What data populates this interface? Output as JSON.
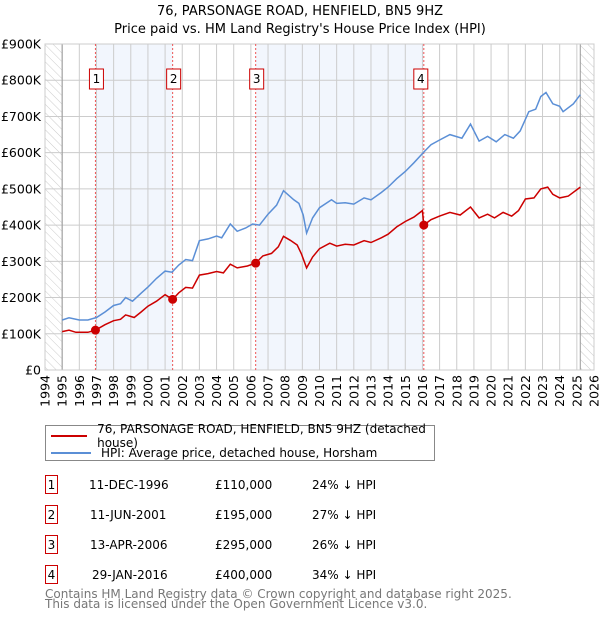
{
  "chart_data": {
    "type": "line",
    "title": "76, PARSONAGE ROAD, HENFIELD, BN5 9HZ",
    "subtitle": "Price paid vs. HM Land Registry's House Price Index (HPI)",
    "xlim": [
      1994,
      2026
    ],
    "ylim": [
      0,
      900000
    ],
    "x_ticks": [
      "1994",
      "1995",
      "1996",
      "1997",
      "1998",
      "1999",
      "2000",
      "2001",
      "2002",
      "2003",
      "2004",
      "2005",
      "2006",
      "2007",
      "2008",
      "2009",
      "2010",
      "2011",
      "2012",
      "2013",
      "2014",
      "2015",
      "2016",
      "2017",
      "2018",
      "2019",
      "2020",
      "2021",
      "2022",
      "2023",
      "2024",
      "2025",
      "2026"
    ],
    "y_ticks": [
      {
        "value": 0,
        "label": "£0"
      },
      {
        "value": 100000,
        "label": "£100K"
      },
      {
        "value": 200000,
        "label": "£200K"
      },
      {
        "value": 300000,
        "label": "£300K"
      },
      {
        "value": 400000,
        "label": "£400K"
      },
      {
        "value": 500000,
        "label": "£500K"
      },
      {
        "value": 600000,
        "label": "£600K"
      },
      {
        "value": 700000,
        "label": "£700K"
      },
      {
        "value": 800000,
        "label": "£800K"
      },
      {
        "value": 900000,
        "label": "£900K"
      }
    ],
    "grid": true,
    "data_range": [
      1995,
      2025.2
    ],
    "series": [
      {
        "name": "76, PARSONAGE ROAD, HENFIELD, BN5 9HZ (detached house)",
        "color": "#cc0000",
        "points": [
          [
            1995,
            106000
          ],
          [
            1995.4,
            110000
          ],
          [
            1995.8,
            104000
          ],
          [
            1996.5,
            104000
          ],
          [
            1996.94,
            110000
          ],
          [
            1997.5,
            125000
          ],
          [
            1998,
            136000
          ],
          [
            1998.4,
            140000
          ],
          [
            1998.7,
            152000
          ],
          [
            1999.2,
            145000
          ],
          [
            1999.6,
            160000
          ],
          [
            2000,
            176000
          ],
          [
            2000.5,
            190000
          ],
          [
            2001,
            208000
          ],
          [
            2001.44,
            195000
          ],
          [
            2001.8,
            213000
          ],
          [
            2002.2,
            228000
          ],
          [
            2002.6,
            226000
          ],
          [
            2003,
            262000
          ],
          [
            2003.5,
            266000
          ],
          [
            2004,
            272000
          ],
          [
            2004.4,
            268000
          ],
          [
            2004.8,
            292000
          ],
          [
            2005.2,
            282000
          ],
          [
            2005.8,
            287000
          ],
          [
            2006.28,
            295000
          ],
          [
            2006.7,
            315000
          ],
          [
            2007.2,
            322000
          ],
          [
            2007.6,
            340000
          ],
          [
            2007.9,
            369000
          ],
          [
            2008.3,
            358000
          ],
          [
            2008.7,
            345000
          ],
          [
            2008.95,
            320000
          ],
          [
            2009.25,
            282000
          ],
          [
            2009.6,
            312000
          ],
          [
            2010,
            335000
          ],
          [
            2010.6,
            350000
          ],
          [
            2011,
            342000
          ],
          [
            2011.5,
            347000
          ],
          [
            2012,
            345000
          ],
          [
            2012.6,
            357000
          ],
          [
            2013,
            352000
          ],
          [
            2013.6,
            365000
          ],
          [
            2014,
            375000
          ],
          [
            2014.5,
            395000
          ],
          [
            2015,
            410000
          ],
          [
            2015.5,
            422000
          ],
          [
            2016.0,
            440000
          ],
          [
            2016.08,
            400000
          ],
          [
            2016.5,
            415000
          ],
          [
            2017,
            425000
          ],
          [
            2017.6,
            435000
          ],
          [
            2018.2,
            428000
          ],
          [
            2018.8,
            450000
          ],
          [
            2019.3,
            420000
          ],
          [
            2019.8,
            430000
          ],
          [
            2020.2,
            420000
          ],
          [
            2020.7,
            435000
          ],
          [
            2021.2,
            425000
          ],
          [
            2021.6,
            440000
          ],
          [
            2022,
            472000
          ],
          [
            2022.5,
            475000
          ],
          [
            2022.9,
            500000
          ],
          [
            2023.3,
            505000
          ],
          [
            2023.6,
            485000
          ],
          [
            2024,
            475000
          ],
          [
            2024.5,
            480000
          ],
          [
            2025.2,
            505000
          ]
        ]
      },
      {
        "name": "HPI: Average price, detached house, Horsham",
        "color": "#5b8fd6",
        "points": [
          [
            1995,
            138000
          ],
          [
            1995.4,
            144000
          ],
          [
            1996,
            138000
          ],
          [
            1996.5,
            138000
          ],
          [
            1997,
            145000
          ],
          [
            1997.5,
            160000
          ],
          [
            1998,
            178000
          ],
          [
            1998.4,
            183000
          ],
          [
            1998.7,
            200000
          ],
          [
            1999.1,
            190000
          ],
          [
            1999.6,
            212000
          ],
          [
            2000,
            229000
          ],
          [
            2000.5,
            253000
          ],
          [
            2001,
            273000
          ],
          [
            2001.4,
            270000
          ],
          [
            2001.8,
            290000
          ],
          [
            2002.2,
            305000
          ],
          [
            2002.6,
            302000
          ],
          [
            2003,
            357000
          ],
          [
            2003.5,
            362000
          ],
          [
            2004,
            370000
          ],
          [
            2004.3,
            365000
          ],
          [
            2004.8,
            403000
          ],
          [
            2005.2,
            383000
          ],
          [
            2005.7,
            392000
          ],
          [
            2006.1,
            403000
          ],
          [
            2006.5,
            400000
          ],
          [
            2007,
            430000
          ],
          [
            2007.5,
            455000
          ],
          [
            2007.9,
            495000
          ],
          [
            2008.5,
            470000
          ],
          [
            2008.8,
            460000
          ],
          [
            2009.05,
            428000
          ],
          [
            2009.25,
            378000
          ],
          [
            2009.6,
            420000
          ],
          [
            2010,
            448000
          ],
          [
            2010.7,
            470000
          ],
          [
            2011,
            460000
          ],
          [
            2011.5,
            462000
          ],
          [
            2012,
            458000
          ],
          [
            2012.6,
            475000
          ],
          [
            2013,
            470000
          ],
          [
            2013.6,
            490000
          ],
          [
            2014,
            505000
          ],
          [
            2014.5,
            528000
          ],
          [
            2015,
            548000
          ],
          [
            2015.5,
            572000
          ],
          [
            2016.1,
            603000
          ],
          [
            2016.5,
            622000
          ],
          [
            2017,
            635000
          ],
          [
            2017.6,
            650000
          ],
          [
            2018.3,
            640000
          ],
          [
            2018.8,
            679000
          ],
          [
            2019.3,
            632000
          ],
          [
            2019.8,
            645000
          ],
          [
            2020.3,
            630000
          ],
          [
            2020.8,
            650000
          ],
          [
            2021.3,
            640000
          ],
          [
            2021.7,
            660000
          ],
          [
            2022.2,
            713000
          ],
          [
            2022.6,
            720000
          ],
          [
            2022.9,
            755000
          ],
          [
            2023.2,
            766000
          ],
          [
            2023.6,
            735000
          ],
          [
            2024,
            728000
          ],
          [
            2024.2,
            713000
          ],
          [
            2024.8,
            735000
          ],
          [
            2025.2,
            760000
          ]
        ]
      }
    ],
    "sales": [
      {
        "label": "1",
        "x": 1996.94,
        "y": 110000
      },
      {
        "label": "2",
        "x": 2001.44,
        "y": 195000
      },
      {
        "label": "3",
        "x": 2006.28,
        "y": 295000
      },
      {
        "label": "4",
        "x": 2016.08,
        "y": 400000
      }
    ]
  },
  "legend": {
    "property": "76, PARSONAGE ROAD, HENFIELD, BN5 9HZ (detached house)",
    "hpi": "HPI: Average price, detached house, Horsham"
  },
  "transactions": [
    {
      "num": "1",
      "date": "11-DEC-1996",
      "price": "£110,000",
      "hpi": "24% ↓ HPI"
    },
    {
      "num": "2",
      "date": "11-JUN-2001",
      "price": "£195,000",
      "hpi": "27% ↓ HPI"
    },
    {
      "num": "3",
      "date": "13-APR-2006",
      "price": "£295,000",
      "hpi": "26% ↓ HPI"
    },
    {
      "num": "4",
      "date": "29-JAN-2016",
      "price": "£400,000",
      "hpi": "34% ↓ HPI"
    }
  ],
  "footer": {
    "line1": "Contains HM Land Registry data © Crown copyright and database right 2025.",
    "line2": "This data is licensed under the Open Government Licence v3.0."
  }
}
